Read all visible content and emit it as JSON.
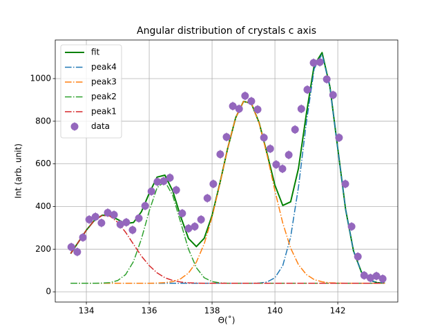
{
  "chart_data": {
    "type": "line",
    "title": "Angular distribution of crystals c axis",
    "xlabel": "Θ(˚)",
    "ylabel": "Int (arb. unit)",
    "xlim": [
      133.01,
      143.91
    ],
    "ylim": [
      -48,
      1181
    ],
    "xticks": [
      134,
      136,
      138,
      140,
      142
    ],
    "yticks": [
      0,
      200,
      400,
      600,
      800,
      1000
    ],
    "grid": true,
    "legend": "upper left",
    "x": [
      133.5,
      133.75,
      134,
      134.25,
      134.5,
      134.75,
      135,
      135.25,
      135.5,
      135.75,
      136,
      136.25,
      136.5,
      136.75,
      137,
      137.25,
      137.5,
      137.75,
      138,
      138.25,
      138.5,
      138.75,
      139,
      139.25,
      139.5,
      139.75,
      140,
      140.25,
      140.5,
      140.75,
      141,
      141.25,
      141.5,
      141.75,
      142,
      142.25,
      142.5,
      142.75,
      143,
      143.25,
      143.5
    ],
    "series": [
      {
        "name": "fit",
        "color": "#008000",
        "style": "solid",
        "values": [
          179,
          234,
          289,
          334,
          359,
          358,
          339,
          320,
          325,
          375,
          462,
          538,
          547,
          472,
          353,
          250,
          212,
          251,
          358,
          510,
          675,
          816,
          893,
          884,
          792,
          648,
          500,
          405,
          422,
          579,
          834,
          1063,
          1122,
          962,
          672,
          386,
          192,
          93,
          55,
          43,
          41
        ]
      },
      {
        "name": "peak4",
        "color": "#1f77b4",
        "style": "dashdot",
        "values": [
          40,
          40,
          40,
          40,
          40,
          40,
          40,
          40,
          40,
          40,
          40,
          40,
          40,
          40,
          40,
          40,
          40,
          40,
          40,
          40,
          40,
          40,
          40,
          40,
          41,
          46,
          66,
          123,
          257,
          492,
          793,
          1046,
          1115,
          960,
          671,
          386,
          192,
          93,
          55,
          43,
          41
        ]
      },
      {
        "name": "peak3",
        "color": "#ff7f0e",
        "style": "dashdot",
        "values": [
          40,
          40,
          40,
          40,
          40,
          40,
          40,
          40,
          40,
          40,
          40,
          41,
          43,
          48,
          61,
          88,
          139,
          225,
          350,
          508,
          675,
          816,
          893,
          884,
          791,
          642,
          474,
          322,
          205,
          127,
          81,
          57,
          47,
          42,
          41,
          40,
          40,
          40,
          40,
          40,
          40
        ]
      },
      {
        "name": "peak2",
        "color": "#2ca02c",
        "style": "dashdot",
        "values": [
          40,
          40,
          40,
          40,
          41,
          43,
          53,
          81,
          142,
          247,
          379,
          488,
          518,
          451,
          326,
          200,
          113,
          66,
          48,
          42,
          40,
          40,
          40,
          40,
          40,
          40,
          40,
          40,
          40,
          40,
          40,
          40,
          40,
          40,
          40,
          40,
          40,
          40,
          40,
          40,
          40
        ]
      },
      {
        "name": "peak1",
        "color": "#d62728",
        "style": "dashdot",
        "values": [
          179,
          234,
          289,
          334,
          358,
          355,
          326,
          279,
          223,
          168,
          123,
          89,
          66,
          53,
          46,
          42,
          41,
          40,
          40,
          40,
          40,
          40,
          40,
          40,
          40,
          40,
          40,
          40,
          40,
          40,
          40,
          40,
          40,
          40,
          40,
          40,
          40,
          40,
          40,
          40,
          40
        ]
      },
      {
        "name": "data",
        "color": "#9467bd",
        "style": "errorbar",
        "x": [
          133.52,
          133.71,
          133.89,
          134.09,
          134.29,
          134.48,
          134.68,
          134.88,
          135.08,
          135.27,
          135.47,
          135.67,
          135.87,
          136.07,
          136.26,
          136.46,
          136.66,
          136.86,
          137.05,
          137.25,
          137.45,
          137.65,
          137.85,
          138.04,
          138.26,
          138.46,
          138.66,
          138.86,
          139.05,
          139.25,
          139.45,
          139.65,
          139.85,
          140.04,
          140.24,
          140.44,
          140.64,
          140.84,
          141.03,
          141.23,
          141.43,
          141.65,
          141.85,
          142.04,
          142.24,
          142.44,
          142.64,
          142.84,
          143.04,
          143.23,
          143.43
        ],
        "values": [
          210,
          187,
          255,
          339,
          352,
          323,
          371,
          361,
          316,
          326,
          290,
          345,
          403,
          471,
          516,
          519,
          535,
          477,
          368,
          297,
          306,
          339,
          439,
          506,
          645,
          726,
          871,
          858,
          919,
          894,
          855,
          723,
          671,
          597,
          577,
          642,
          761,
          858,
          948,
          1074,
          1077,
          997,
          923,
          723,
          506,
          306,
          165,
          77,
          65,
          74,
          61
        ],
        "errors": [
          20,
          20,
          20,
          20,
          20,
          20,
          20,
          20,
          20,
          20,
          20,
          20,
          20,
          20,
          20,
          20,
          20,
          20,
          20,
          20,
          20,
          20,
          20,
          20,
          20,
          20,
          20,
          20,
          20,
          20,
          20,
          20,
          20,
          20,
          20,
          20,
          20,
          20,
          20,
          20,
          20,
          20,
          20,
          20,
          20,
          20,
          20,
          20,
          20,
          20,
          20
        ]
      }
    ]
  }
}
